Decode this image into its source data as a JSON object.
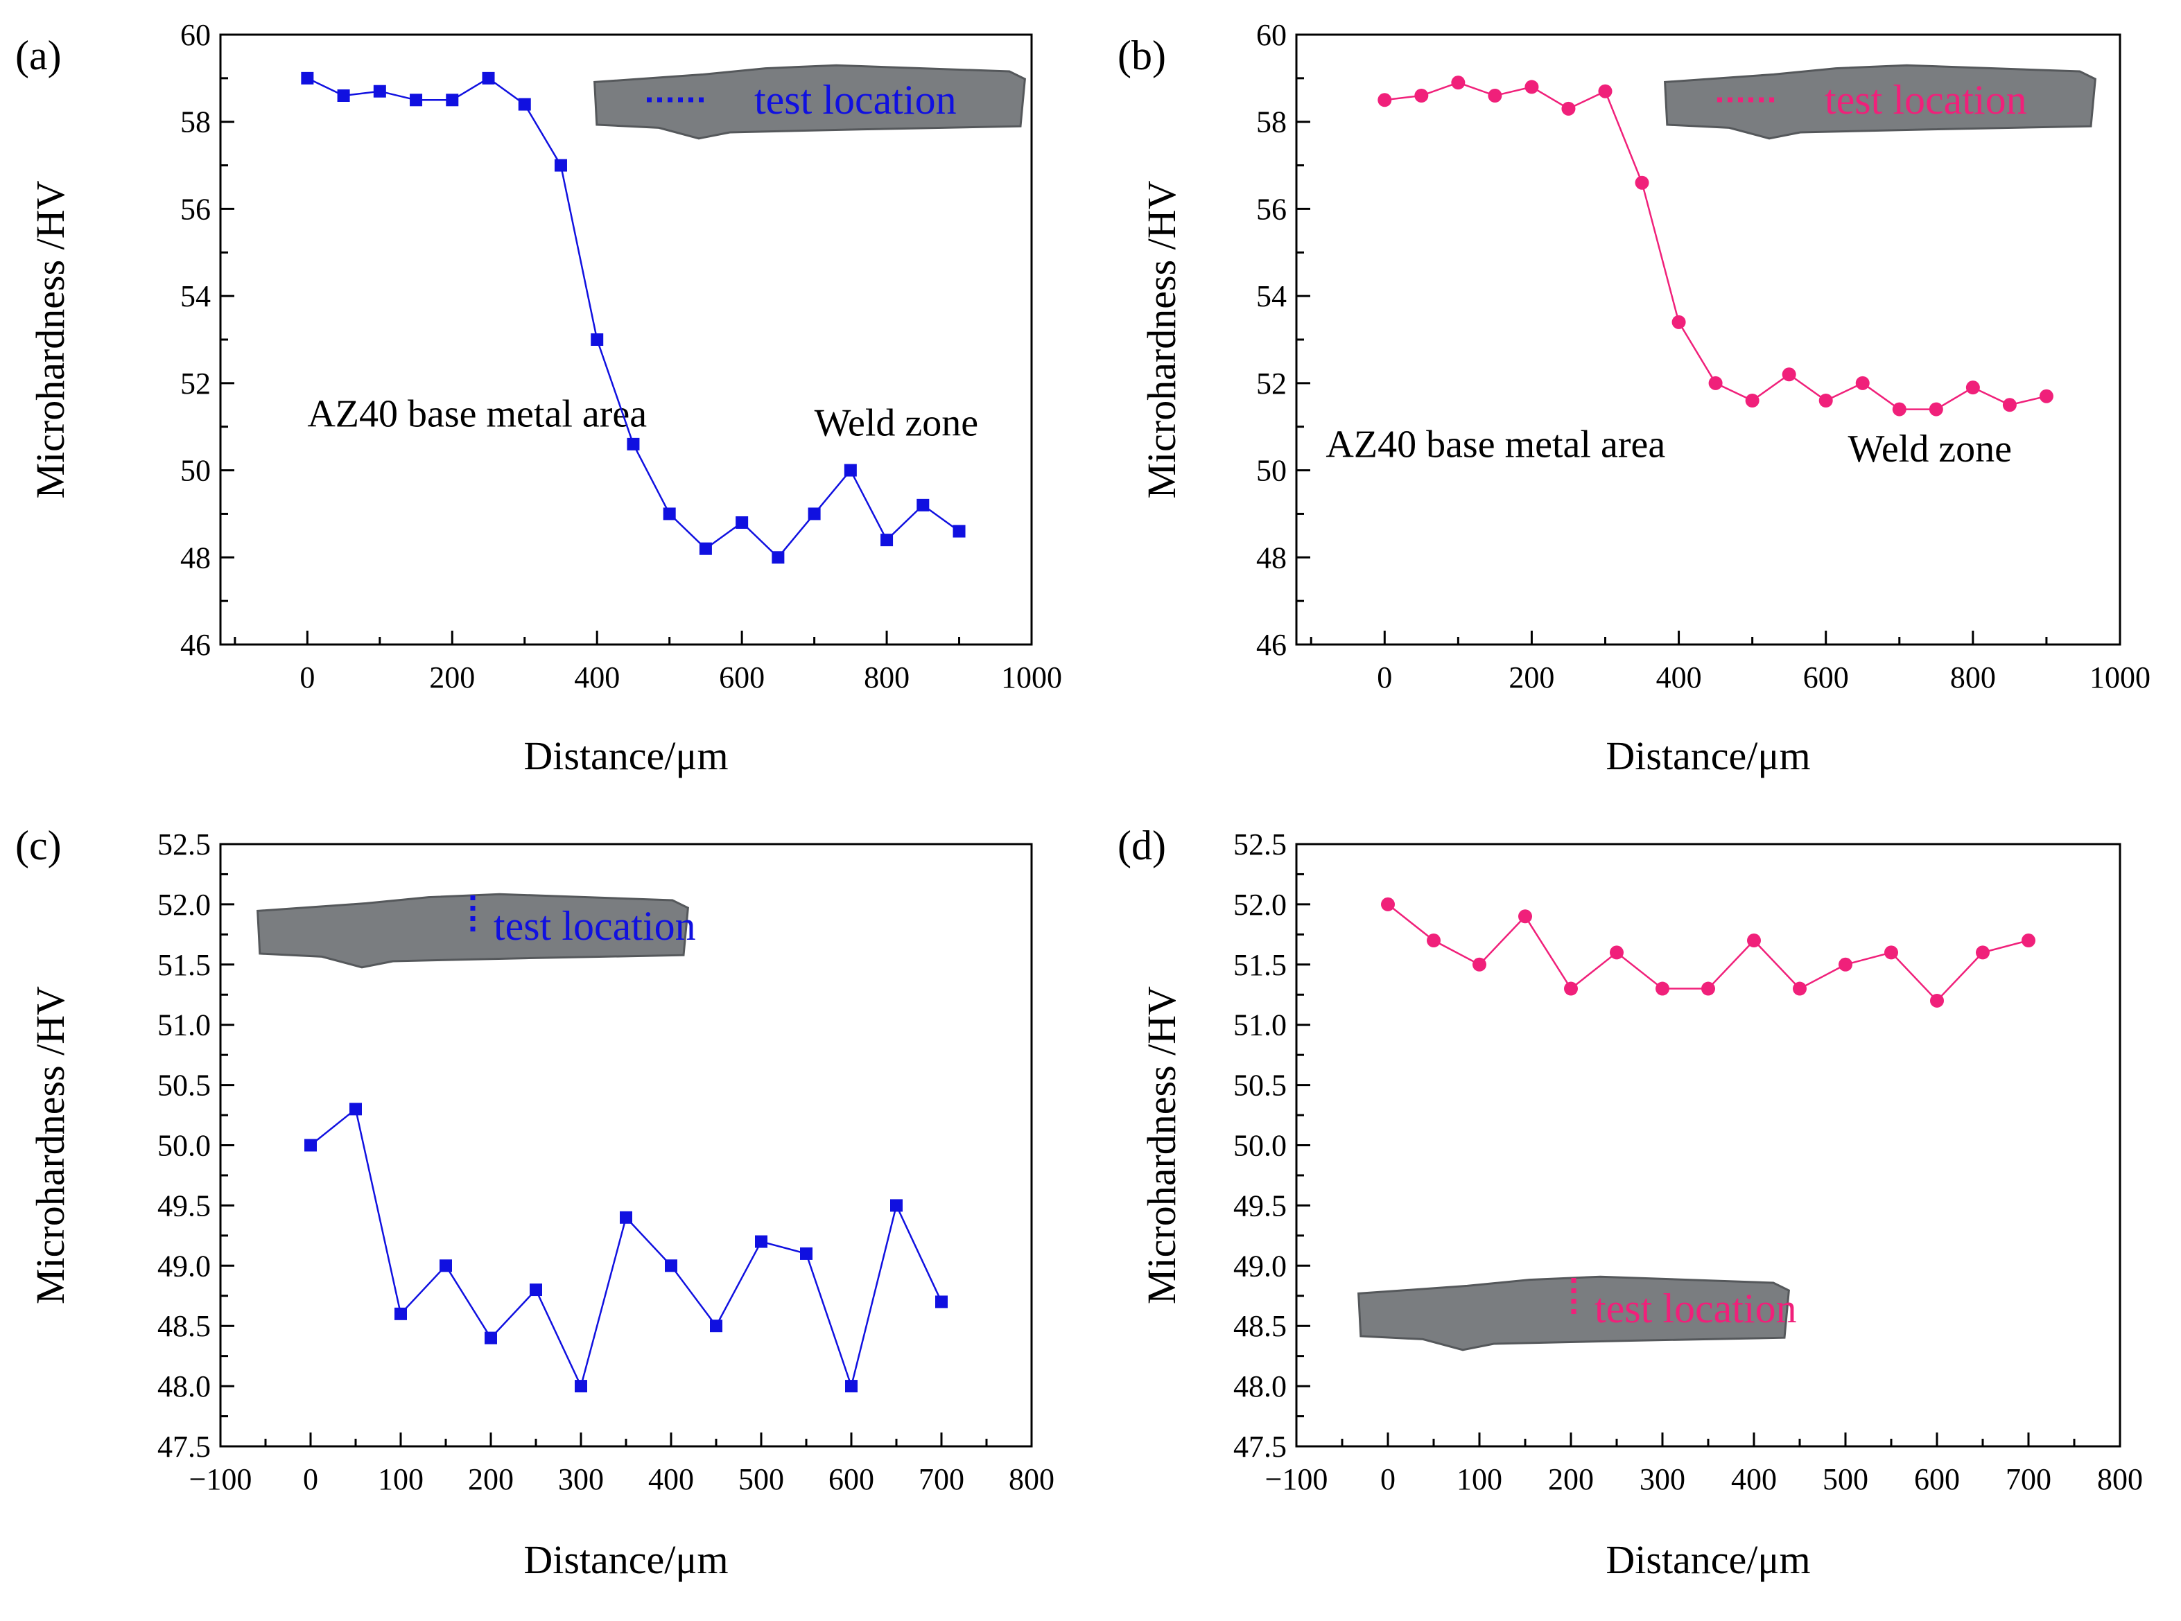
{
  "chart_data": [
    {
      "type": "line",
      "panel_label": "(a)",
      "xlabel": "Distance/μm",
      "ylabel": "Microhardness /HV",
      "xlim": [
        -120,
        1000
      ],
      "ylim": [
        46,
        60
      ],
      "xticks": [
        0,
        200,
        400,
        600,
        800,
        1000
      ],
      "yticks": [
        46,
        48,
        50,
        52,
        54,
        56,
        58,
        60
      ],
      "tick_decimals": 0,
      "marker": "square",
      "color": "#1010e0",
      "legend_text": "test location",
      "legend_position": "top-right",
      "annotations": [
        {
          "text": "AZ40 base metal area",
          "x": 0,
          "y": 51
        },
        {
          "text": "Weld zone",
          "x": 700,
          "y": 50.8
        }
      ],
      "series": [
        {
          "name": "test location",
          "x": [
            0,
            50,
            100,
            150,
            200,
            250,
            300,
            350,
            400,
            450,
            500,
            550,
            600,
            650,
            700,
            750,
            800,
            850,
            900
          ],
          "values": [
            59.0,
            58.6,
            58.7,
            58.5,
            58.5,
            59.0,
            58.4,
            57.0,
            53.0,
            50.6,
            49.0,
            48.2,
            48.8,
            48.0,
            49.0,
            50.0,
            48.4,
            49.2,
            48.6
          ]
        }
      ]
    },
    {
      "type": "line",
      "panel_label": "(b)",
      "xlabel": "Distance/μm",
      "ylabel": "Microhardness /HV",
      "xlim": [
        -120,
        1000
      ],
      "ylim": [
        46,
        60
      ],
      "xticks": [
        0,
        200,
        400,
        600,
        800,
        1000
      ],
      "yticks": [
        46,
        48,
        50,
        52,
        54,
        56,
        58,
        60
      ],
      "tick_decimals": 0,
      "marker": "circle",
      "color": "#f0207a",
      "legend_text": "test location",
      "legend_position": "top-right",
      "annotations": [
        {
          "text": "AZ40 base metal area",
          "x": -80,
          "y": 50.3
        },
        {
          "text": "Weld zone",
          "x": 630,
          "y": 50.2
        }
      ],
      "series": [
        {
          "name": "test location",
          "x": [
            0,
            50,
            100,
            150,
            200,
            250,
            300,
            350,
            400,
            450,
            500,
            550,
            600,
            650,
            700,
            750,
            800,
            850,
            900
          ],
          "values": [
            58.5,
            58.6,
            58.9,
            58.6,
            58.8,
            58.3,
            58.7,
            56.6,
            53.4,
            52.0,
            51.6,
            52.2,
            51.6,
            52.0,
            51.4,
            51.4,
            51.9,
            51.5,
            51.7
          ]
        }
      ]
    },
    {
      "type": "line",
      "panel_label": "(c)",
      "xlabel": "Distance/μm",
      "ylabel": "Microhardness /HV",
      "xlim": [
        -100,
        800
      ],
      "ylim": [
        47.5,
        52.5
      ],
      "xticks": [
        -100,
        0,
        100,
        200,
        300,
        400,
        500,
        600,
        700,
        800
      ],
      "yticks": [
        47.5,
        48.0,
        48.5,
        49.0,
        49.5,
        50.0,
        50.5,
        51.0,
        51.5,
        52.0,
        52.5
      ],
      "tick_decimals": 1,
      "marker": "square",
      "color": "#1010e0",
      "legend_text": "test location",
      "legend_position": "top-left",
      "annotations": [],
      "series": [
        {
          "name": "test location",
          "x": [
            0,
            50,
            100,
            150,
            200,
            250,
            300,
            350,
            400,
            450,
            500,
            550,
            600,
            650,
            700
          ],
          "values": [
            50.0,
            50.3,
            48.6,
            49.0,
            48.4,
            48.8,
            48.0,
            49.4,
            49.0,
            48.5,
            49.2,
            49.1,
            48.0,
            49.5,
            48.7
          ]
        }
      ]
    },
    {
      "type": "line",
      "panel_label": "(d)",
      "xlabel": "Distance/μm",
      "ylabel": "Microhardness /HV",
      "xlim": [
        -100,
        800
      ],
      "ylim": [
        47.5,
        52.5
      ],
      "xticks": [
        -100,
        0,
        100,
        200,
        300,
        400,
        500,
        600,
        700,
        800
      ],
      "yticks": [
        47.5,
        48.0,
        48.5,
        49.0,
        49.5,
        50.0,
        50.5,
        51.0,
        51.5,
        52.0,
        52.5
      ],
      "tick_decimals": 1,
      "marker": "circle",
      "color": "#f0207a",
      "legend_text": "test location",
      "legend_position": "bottom-left",
      "annotations": [],
      "series": [
        {
          "name": "test location",
          "x": [
            0,
            50,
            100,
            150,
            200,
            250,
            300,
            350,
            400,
            450,
            500,
            550,
            600,
            650,
            700
          ],
          "values": [
            52.0,
            51.7,
            51.5,
            51.9,
            51.3,
            51.6,
            51.3,
            51.3,
            51.7,
            51.3,
            51.5,
            51.6,
            51.2,
            51.6,
            51.7
          ]
        }
      ]
    }
  ]
}
